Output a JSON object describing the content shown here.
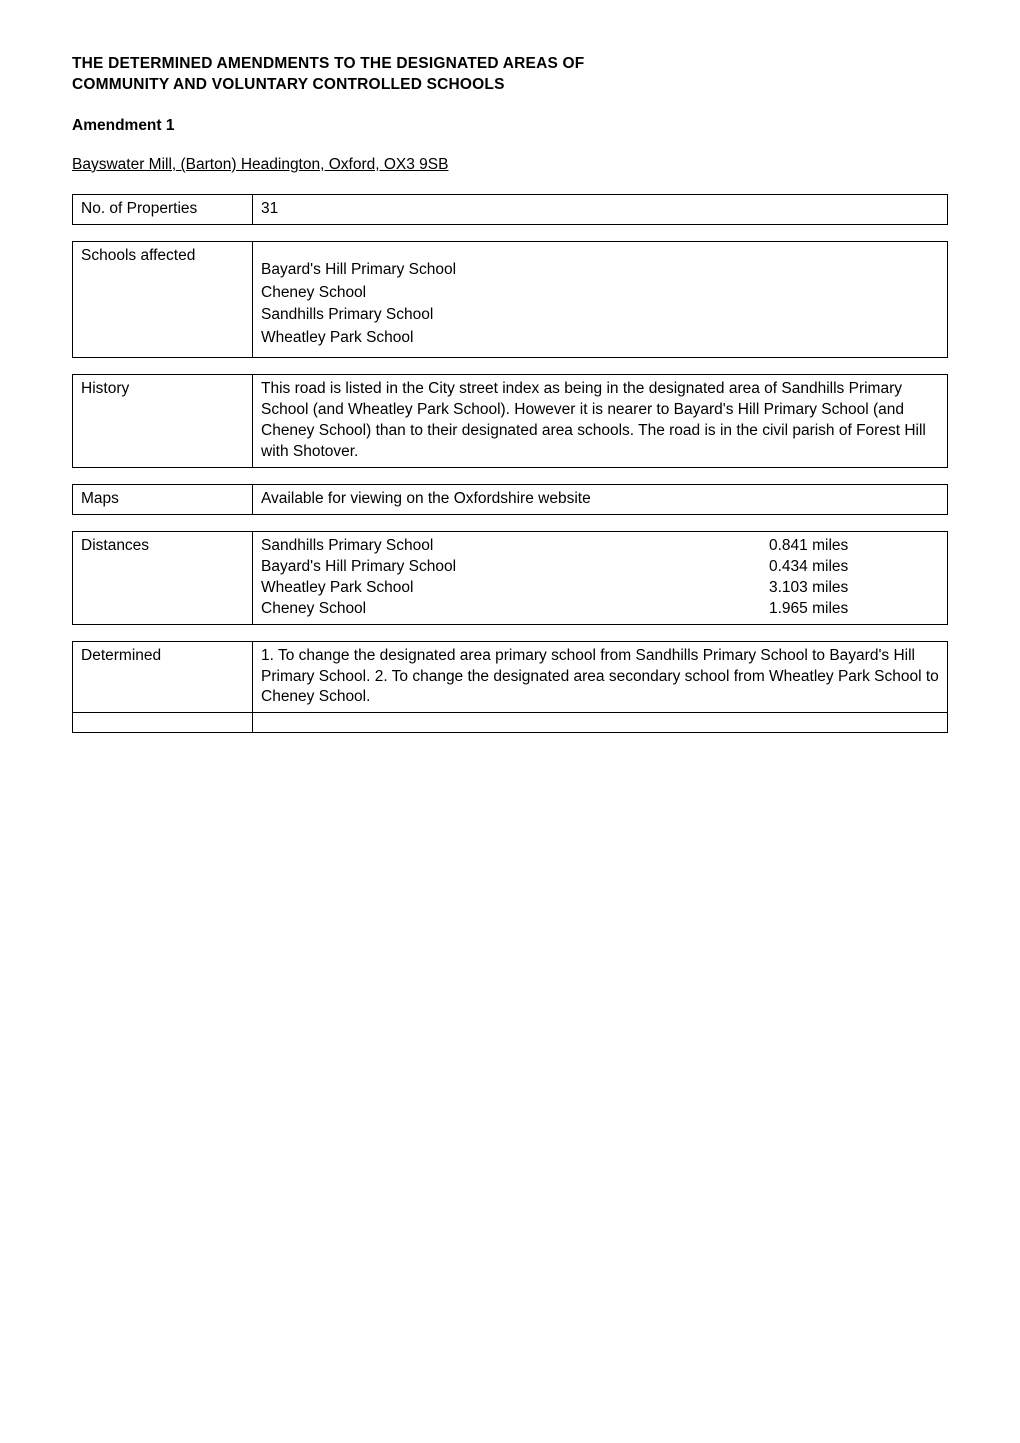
{
  "heading_line1": "THE DETERMINED AMENDMENTS TO THE DESIGNATED AREAS OF",
  "heading_line2": "COMMUNITY AND VOLUNTARY CONTROLLED SCHOOLS",
  "amendment_label": "Amendment 1",
  "location_underline": " Bayswater Mill, (Barton) Headington, Oxford, OX3 9SB",
  "properties": {
    "label": "No. of Properties",
    "value": "31"
  },
  "schools_affected": {
    "label": "Schools affected",
    "items": [
      "Bayard's Hill Primary School",
      "Cheney School",
      "Sandhills Primary School",
      "Wheatley Park School"
    ]
  },
  "history": {
    "label": "History",
    "text": "This road is listed in the City street index as being in the designated area of Sandhills Primary School (and Wheatley Park School).  However it is nearer to Bayard's Hill Primary School (and Cheney School) than to their designated area schools. The road is in the civil parish of Forest Hill with Shotover."
  },
  "maps": {
    "label": "Maps",
    "text": "Available for viewing on the Oxfordshire website"
  },
  "distances": {
    "label": "Distances",
    "rows": [
      {
        "school": "Sandhills Primary School",
        "miles": "0.841 miles"
      },
      {
        "school": "Bayard's Hill Primary School",
        "miles": "0.434 miles"
      },
      {
        "school": "Wheatley Park School",
        "miles": "3.103 miles"
      },
      {
        "school": "Cheney School",
        "miles": "1.965 miles"
      }
    ]
  },
  "determined": {
    "label": "Determined",
    "text": "1. To change the designated area primary school from Sandhills Primary School to Bayard's Hill Primary School. 2. To change the designated area secondary school from Wheatley Park School to Cheney School."
  }
}
